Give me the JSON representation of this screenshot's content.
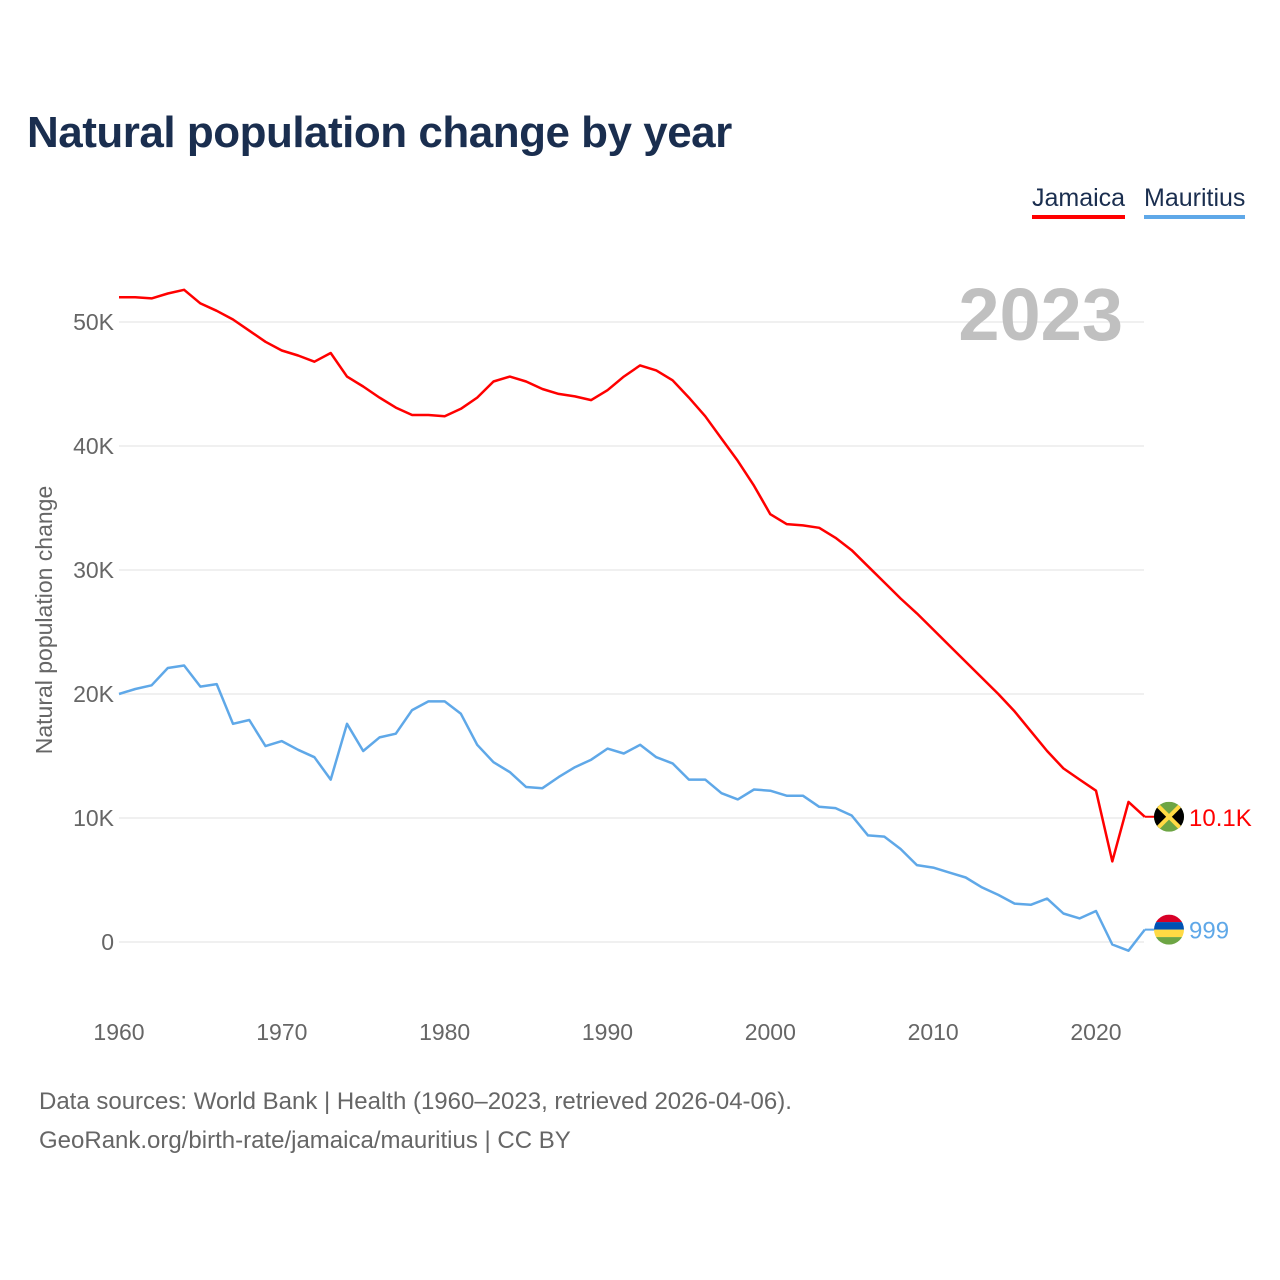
{
  "title": "Natural population change by year",
  "legend": [
    {
      "name": "Jamaica",
      "color": "#ff0000"
    },
    {
      "name": "Mauritius",
      "color": "#5fa8e8"
    }
  ],
  "year_watermark": "2023",
  "footer": {
    "line1": "Data sources: World Bank | Health (1960–2023, retrieved 2026-04-06).",
    "line2": "GeoRank.org/birth-rate/jamaica/mauritius | CC BY"
  },
  "chart_data": {
    "type": "line",
    "title": "Natural population change by year",
    "xlabel": "",
    "ylabel": "Natural population change",
    "xlim": [
      1960,
      2023
    ],
    "ylim": [
      -5000,
      55000
    ],
    "x_ticks": [
      1960,
      1970,
      1980,
      1990,
      2000,
      2010,
      2020
    ],
    "x_tick_labels": [
      "1960",
      "1970",
      "1980",
      "1990",
      "2000",
      "2010",
      "2020"
    ],
    "y_ticks": [
      0,
      10000,
      20000,
      30000,
      40000,
      50000
    ],
    "y_tick_labels": [
      "0",
      "10K",
      "20K",
      "30K",
      "40K",
      "50K"
    ],
    "grid": true,
    "legend_position": "top-right",
    "x_start": 1960,
    "series": [
      {
        "name": "Jamaica",
        "color": "#ff0000",
        "end_label": "10.1K",
        "values": [
          52000,
          52000,
          51900,
          52300,
          52600,
          51500,
          50900,
          50200,
          49300,
          48400,
          47700,
          47300,
          46800,
          47500,
          45600,
          44800,
          43900,
          43100,
          42500,
          42500,
          42400,
          43000,
          43900,
          45200,
          45600,
          45200,
          44600,
          44200,
          44000,
          43700,
          44500,
          45600,
          46500,
          46100,
          45300,
          43900,
          42400,
          40600,
          38800,
          36800,
          34500,
          33700,
          33600,
          33400,
          32600,
          31600,
          30300,
          29000,
          27700,
          26500,
          25200,
          23900,
          22600,
          21300,
          20000,
          18600,
          17000,
          15400,
          14000,
          13100,
          12200,
          6500,
          11300,
          10100
        ]
      },
      {
        "name": "Mauritius",
        "color": "#5fa8e8",
        "end_label": "999",
        "values": [
          20000,
          20400,
          20700,
          22100,
          22300,
          20600,
          20800,
          17600,
          17900,
          15800,
          16200,
          15500,
          14900,
          13100,
          17600,
          15400,
          16500,
          16800,
          18700,
          19400,
          19400,
          18400,
          15900,
          14500,
          13700,
          12500,
          12400,
          13300,
          14100,
          14700,
          15600,
          15200,
          15900,
          14900,
          14400,
          13100,
          13100,
          12000,
          11500,
          12300,
          12200,
          11800,
          11800,
          10900,
          10800,
          10200,
          8600,
          8500,
          7500,
          6200,
          6000,
          5600,
          5200,
          4400,
          3800,
          3100,
          3000,
          3500,
          2300,
          1900,
          2500,
          -200,
          -700,
          999
        ]
      }
    ]
  }
}
